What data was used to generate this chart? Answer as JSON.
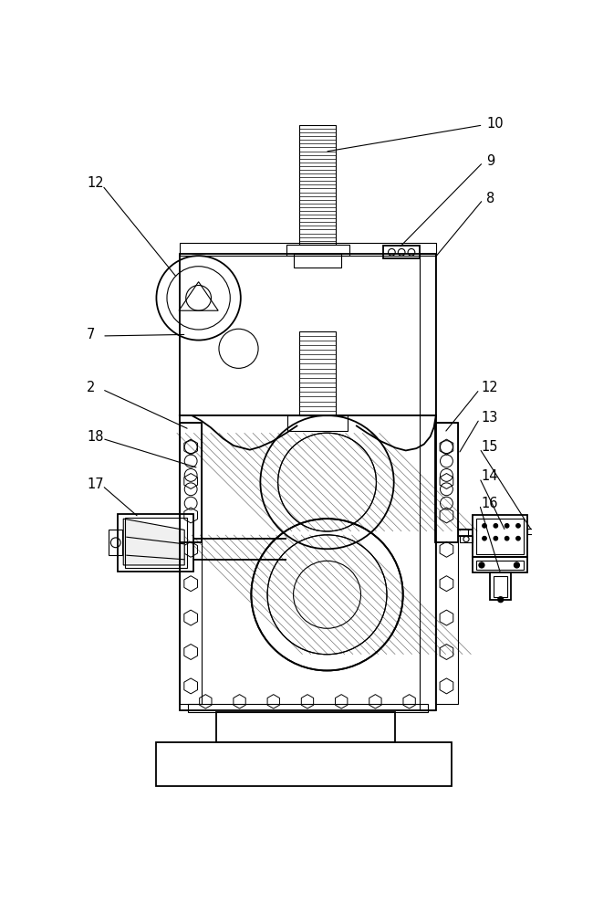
{
  "bg_color": "#ffffff",
  "line_color": "#000000",
  "label_fontsize": 10.5,
  "figsize": [
    6.5,
    10.0
  ],
  "dpi": 100
}
